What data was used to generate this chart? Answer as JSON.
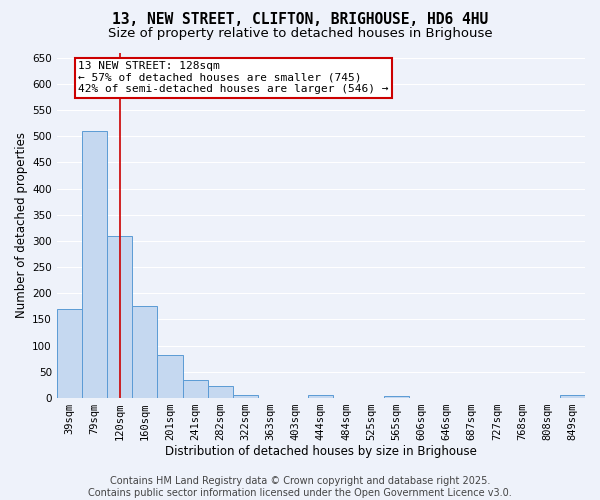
{
  "title_line1": "13, NEW STREET, CLIFTON, BRIGHOUSE, HD6 4HU",
  "title_line2": "Size of property relative to detached houses in Brighouse",
  "xlabel": "Distribution of detached houses by size in Brighouse",
  "ylabel": "Number of detached properties",
  "bin_labels": [
    "39sqm",
    "79sqm",
    "120sqm",
    "160sqm",
    "201sqm",
    "241sqm",
    "282sqm",
    "322sqm",
    "363sqm",
    "403sqm",
    "444sqm",
    "484sqm",
    "525sqm",
    "565sqm",
    "606sqm",
    "646sqm",
    "687sqm",
    "727sqm",
    "768sqm",
    "808sqm",
    "849sqm"
  ],
  "bar_values": [
    170,
    510,
    310,
    175,
    82,
    35,
    23,
    5,
    0,
    0,
    5,
    0,
    0,
    3,
    0,
    0,
    0,
    0,
    0,
    0,
    5
  ],
  "bar_color": "#c5d8f0",
  "bar_edge_color": "#5b9bd5",
  "vline_color": "#cc0000",
  "annotation_text": "13 NEW STREET: 128sqm\n← 57% of detached houses are smaller (745)\n42% of semi-detached houses are larger (546) →",
  "annotation_facecolor": "white",
  "annotation_edgecolor": "#cc0000",
  "footer_text": "Contains HM Land Registry data © Crown copyright and database right 2025.\nContains public sector information licensed under the Open Government Licence v3.0.",
  "ylim": [
    0,
    660
  ],
  "yticks": [
    0,
    50,
    100,
    150,
    200,
    250,
    300,
    350,
    400,
    450,
    500,
    550,
    600,
    650
  ],
  "bg_color": "#eef2fa",
  "grid_color": "#ffffff",
  "title_fontsize": 10.5,
  "subtitle_fontsize": 9.5,
  "axis_label_fontsize": 8.5,
  "tick_fontsize": 7.5,
  "annotation_fontsize": 8,
  "footer_fontsize": 7
}
